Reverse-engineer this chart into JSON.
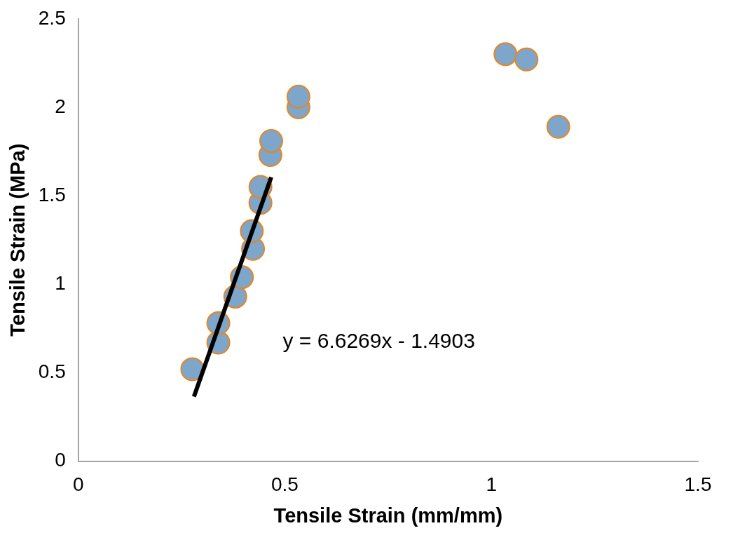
{
  "chart_data": {
    "type": "scatter",
    "xlabel": "Tensile Strain (mm/mm)",
    "ylabel": "Tensile Strain (MPa)",
    "xlim": [
      0,
      1.5
    ],
    "xticks": [
      0,
      0.5,
      1,
      1.5
    ],
    "ylim": [
      0,
      2.5
    ],
    "yticks": [
      0,
      0.5,
      1,
      1.5,
      2,
      2.5
    ],
    "grid": false,
    "legend": false,
    "series": [
      {
        "marker": "circle",
        "color": "#7ea6cb",
        "x": [
          0.276,
          0.339,
          0.339,
          0.38,
          0.396,
          0.423,
          0.42,
          0.441,
          0.441,
          0.465,
          0.467,
          0.533,
          0.533,
          1.034,
          1.085,
          1.162
        ],
        "values": [
          0.52,
          0.67,
          0.78,
          0.93,
          1.04,
          1.2,
          1.3,
          1.46,
          1.55,
          1.73,
          1.81,
          2.0,
          2.06,
          2.3,
          2.27,
          1.89
        ]
      },
      {
        "type": "line",
        "marker": "none",
        "color": "#000000",
        "x": [
          0.28,
          0.467
        ],
        "values": [
          0.365,
          1.605
        ]
      }
    ],
    "annotations": [
      "y = 6.6269x - 1.4903"
    ]
  }
}
